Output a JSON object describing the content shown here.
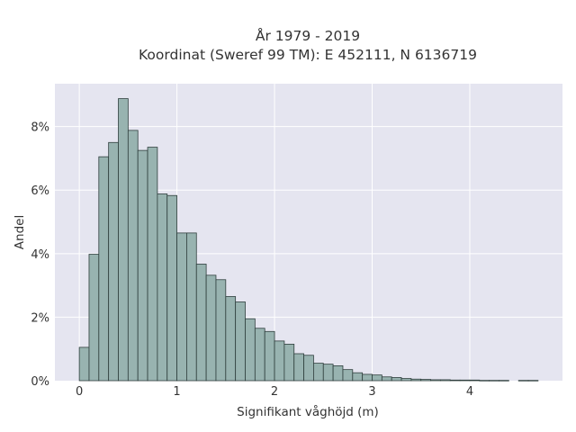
{
  "chart_data": {
    "type": "bar",
    "title_line1": "År 1979 - 2019",
    "title_line2": "Koordinat (Sweref 99 TM): E 452111, N 6136719",
    "xlabel": "Signifikant våghöjd (m)",
    "ylabel": "Andel",
    "x_ticks": [
      "0",
      "1",
      "2",
      "3",
      "4"
    ],
    "y_ticks": [
      "0%",
      "2%",
      "4%",
      "6%",
      "8%"
    ],
    "xlim": [
      -0.25,
      4.95
    ],
    "ylim": [
      0,
      9.35
    ],
    "bin_width": 0.1,
    "bins_start": [
      0.0,
      0.1,
      0.2,
      0.3,
      0.4,
      0.5,
      0.6,
      0.7,
      0.8,
      0.9,
      1.0,
      1.1,
      1.2,
      1.3,
      1.4,
      1.5,
      1.6,
      1.7,
      1.8,
      1.9,
      2.0,
      2.1,
      2.2,
      2.3,
      2.4,
      2.5,
      2.6,
      2.7,
      2.8,
      2.9,
      3.0,
      3.1,
      3.2,
      3.3,
      3.4,
      3.5,
      3.6,
      3.7,
      3.8,
      3.9,
      4.0,
      4.1,
      4.2,
      4.3,
      4.5,
      4.6
    ],
    "values": [
      1.05,
      3.98,
      7.05,
      7.5,
      8.88,
      7.88,
      7.25,
      7.35,
      5.88,
      5.83,
      4.65,
      4.65,
      3.67,
      3.32,
      3.18,
      2.65,
      2.48,
      1.95,
      1.65,
      1.55,
      1.25,
      1.15,
      0.85,
      0.8,
      0.55,
      0.52,
      0.47,
      0.35,
      0.25,
      0.2,
      0.18,
      0.12,
      0.1,
      0.07,
      0.05,
      0.04,
      0.03,
      0.03,
      0.02,
      0.02,
      0.02,
      0.01,
      0.01,
      0.01,
      0.01,
      0.01
    ],
    "grid": true,
    "colors": {
      "plot_bg": "#e5e5f0",
      "grid": "#ffffff",
      "bar_fill": "#98b3b0",
      "bar_stroke": "#2f3f3d"
    }
  }
}
